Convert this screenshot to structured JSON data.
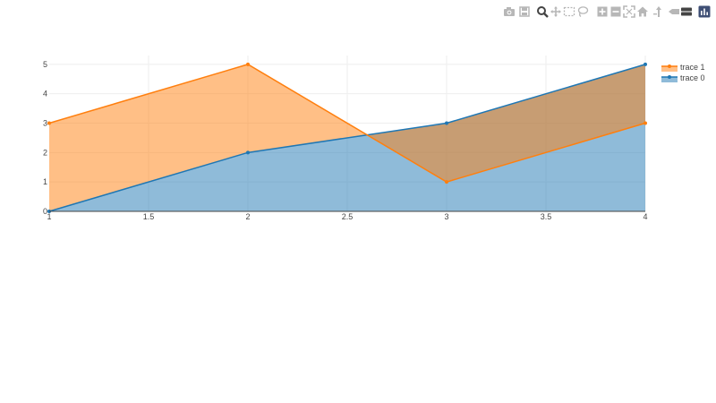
{
  "modebar": {
    "buttons": [
      {
        "name": "camera-icon",
        "title": "Download plot as a png"
      },
      {
        "name": "save-icon",
        "title": "Save and edit plot in cloud"
      },
      {
        "name": "zoom-icon",
        "title": "Zoom"
      },
      {
        "name": "pan-icon",
        "title": "Pan"
      },
      {
        "name": "box-select-icon",
        "title": "Box Select"
      },
      {
        "name": "lasso-select-icon",
        "title": "Lasso Select"
      },
      {
        "name": "zoom-in-icon",
        "title": "Zoom in"
      },
      {
        "name": "zoom-out-icon",
        "title": "Zoom out"
      },
      {
        "name": "autoscale-icon",
        "title": "Autoscale"
      },
      {
        "name": "home-icon",
        "title": "Reset axes"
      },
      {
        "name": "spike-lines-icon",
        "title": "Toggle Spike Lines"
      },
      {
        "name": "hover-closest-icon",
        "title": "Show closest data on hover"
      },
      {
        "name": "hover-compare-icon",
        "title": "Compare data on hover"
      },
      {
        "name": "plotly-logo-icon",
        "title": "Produced with Plotly"
      }
    ],
    "active_color": "#444444",
    "inactive_color": "#b7b7b7",
    "logo_color": "#3f4f75"
  },
  "chart_data": {
    "type": "area",
    "x": [
      1,
      2,
      3,
      4
    ],
    "series": [
      {
        "name": "trace 0",
        "values": [
          0,
          2,
          3,
          5
        ],
        "color": "#1f77b4",
        "fill": "tozeroy"
      },
      {
        "name": "trace 1",
        "values": [
          3,
          5,
          1,
          3
        ],
        "color": "#ff7f0e",
        "fill": "tonexty"
      }
    ],
    "xlim": [
      1,
      4
    ],
    "ylim": [
      0,
      5.3
    ],
    "xticks": [
      "1",
      "1.5",
      "2",
      "2.5",
      "3",
      "3.5",
      "4"
    ],
    "yticks": [
      "0",
      "1",
      "2",
      "3",
      "4",
      "5"
    ],
    "title": "",
    "xlabel": "",
    "ylabel": "",
    "grid": true,
    "legend_position": "top-right",
    "legend_order": [
      "trace 1",
      "trace 0"
    ]
  }
}
